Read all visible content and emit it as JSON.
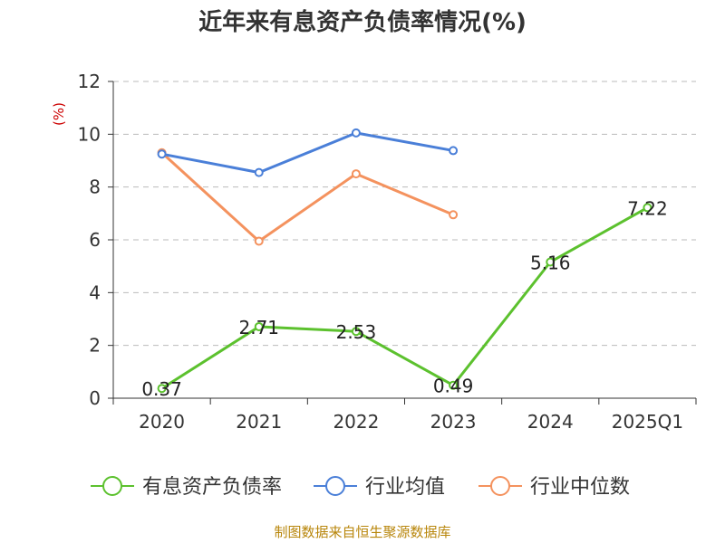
{
  "chart_data": {
    "type": "line",
    "title": "近年来有息资产负债率情况(%)",
    "unit_label": "(%)",
    "categories": [
      "2020",
      "2021",
      "2022",
      "2023",
      "2024",
      "2025Q1"
    ],
    "ylim": [
      0,
      12
    ],
    "yticks": [
      "0",
      "2",
      "4",
      "6",
      "8",
      "10",
      "12"
    ],
    "grid": true,
    "legend_position": "bottom",
    "series": [
      {
        "name": "有息资产负债率",
        "color": "#5cc12e",
        "values": [
          0.37,
          2.71,
          2.53,
          0.49,
          5.16,
          7.22
        ],
        "labels": [
          "0.37",
          "2.71",
          "2.53",
          "0.49",
          "5.16",
          "7.22"
        ]
      },
      {
        "name": "行业均值",
        "color": "#4a7fd8",
        "values": [
          9.25,
          8.55,
          10.05,
          9.38,
          null,
          null
        ]
      },
      {
        "name": "行业中位数",
        "color": "#f4925e",
        "values": [
          9.3,
          5.95,
          8.5,
          6.95,
          null,
          null
        ]
      }
    ],
    "source": "制图数据来自恒生聚源数据库"
  }
}
